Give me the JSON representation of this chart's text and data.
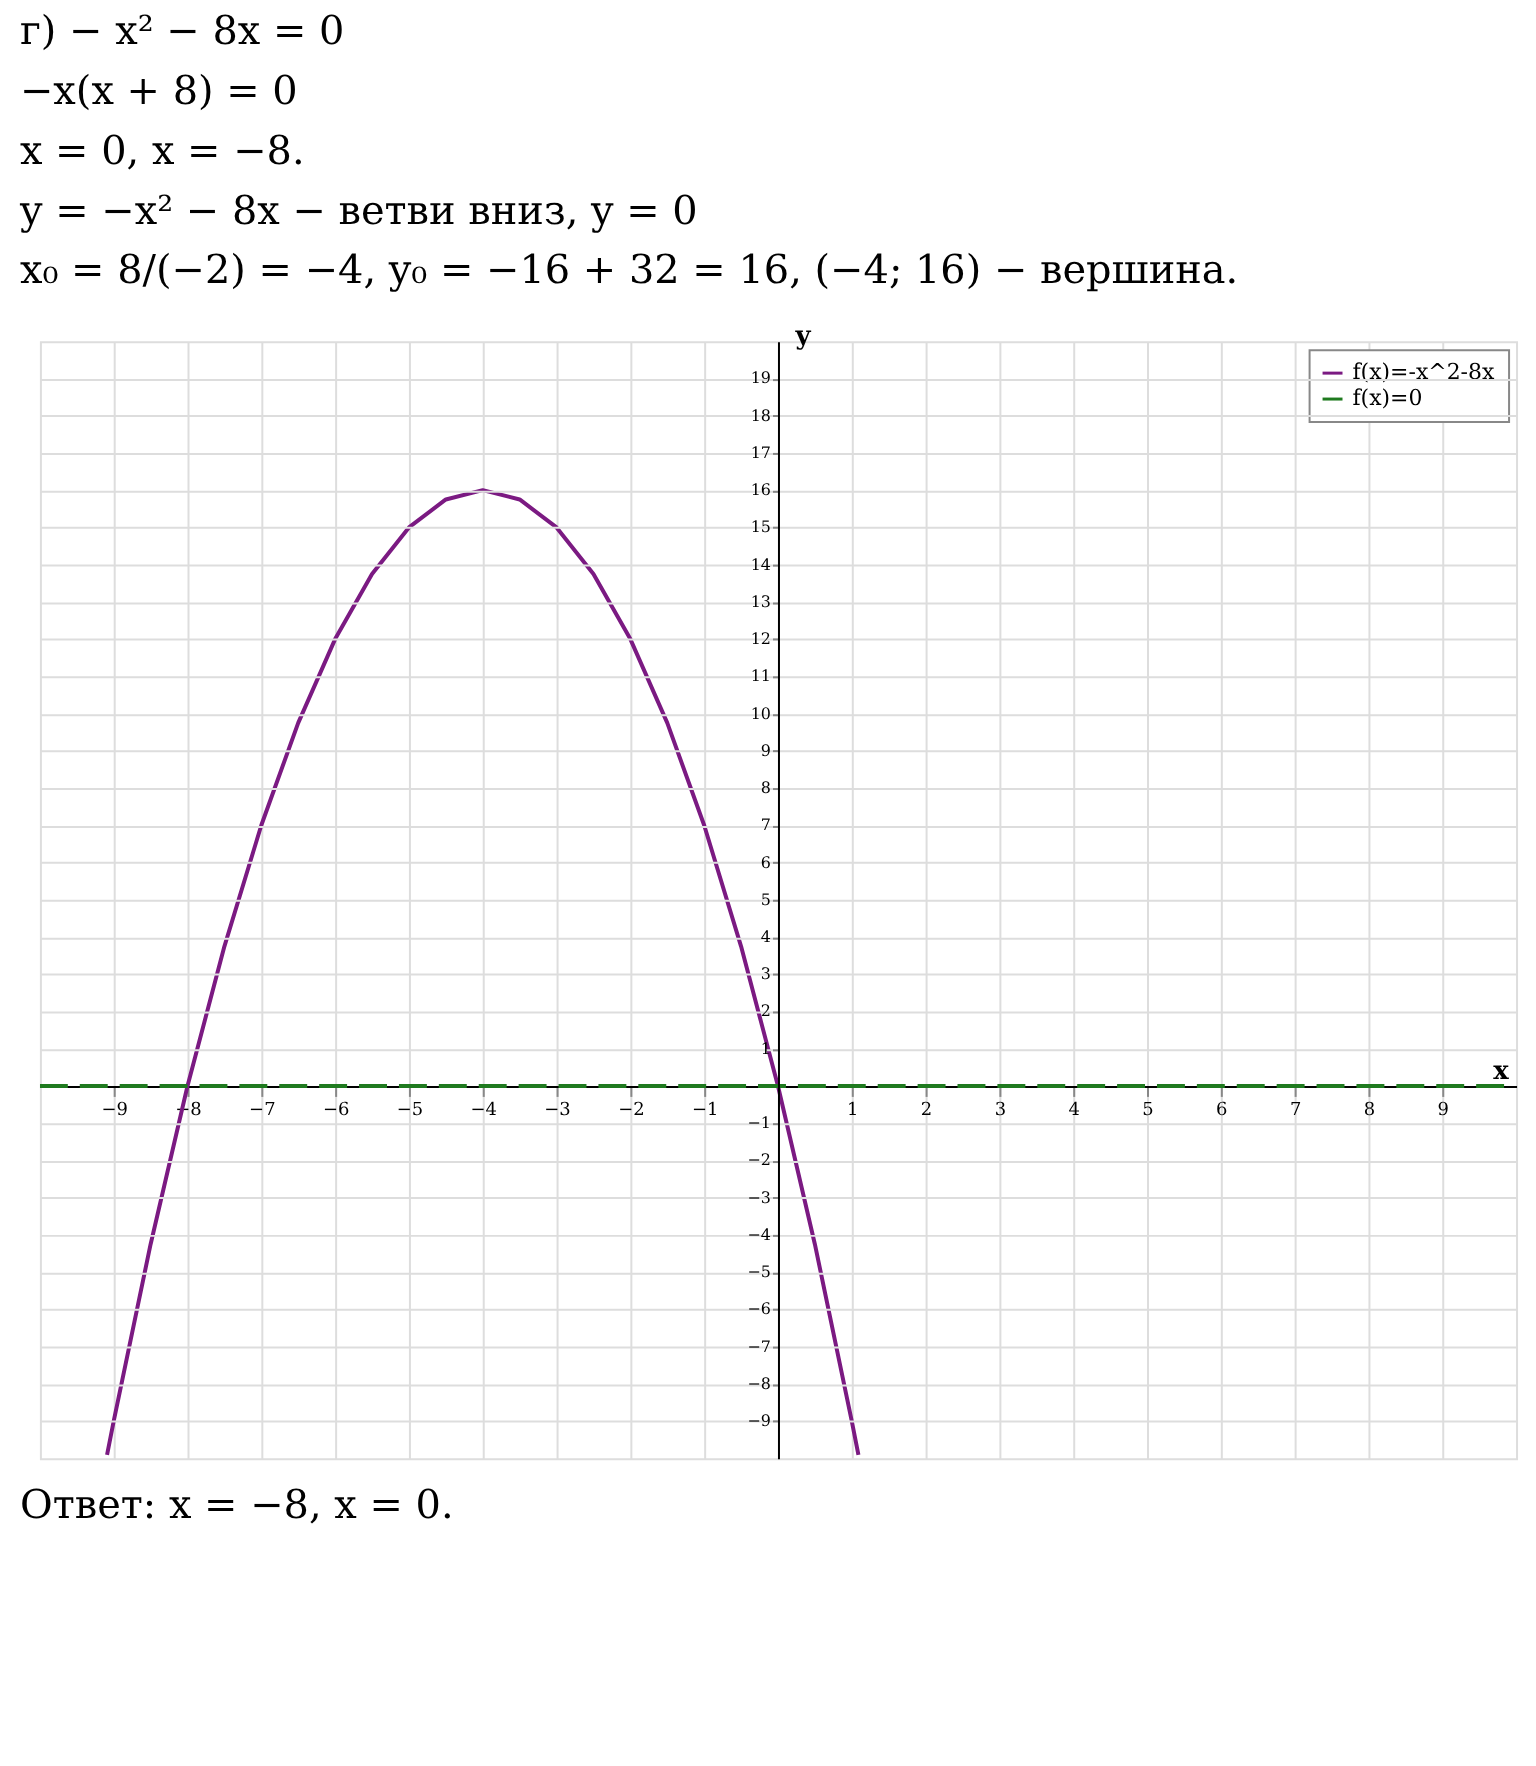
{
  "chart_data": {
    "type": "line",
    "annotations": [
      "г) − x² − 8x = 0",
      "−x(x + 8) = 0",
      "x = 0,      x = −8.",
      "y = −x² − 8x − ветви вниз,      y = 0",
      "x₀ = 8/(−2) = −4,      y₀ = −16 + 32 = 16,      (−4; 16) − вершина.",
      "Ответ: x = −8,      x = 0."
    ],
    "xlabel": "x",
    "ylabel": "y",
    "series": [
      {
        "name": "f(x)=-x^2-8x",
        "color": "#7b1a82",
        "line_style": "solid",
        "x": [
          -9.09,
          -9,
          -8.5,
          -8,
          -7.5,
          -7,
          -6.5,
          -6,
          -5.5,
          -5,
          -4.5,
          -4,
          -3.5,
          -3,
          -2.5,
          -2,
          -1.5,
          -1,
          -0.5,
          0,
          0.5,
          1,
          1.09
        ],
        "values": [
          -9.91,
          -9,
          -4.25,
          0,
          3.75,
          7,
          9.75,
          12,
          13.75,
          15,
          15.75,
          16,
          15.75,
          15,
          13.75,
          12,
          9.75,
          7,
          3.75,
          0,
          -4.25,
          -9,
          -9.91
        ]
      },
      {
        "name": "f(x)=0",
        "color": "#1f7a1f",
        "line_style": "dashed",
        "x": [
          -10,
          10
        ],
        "values": [
          0,
          0
        ]
      }
    ],
    "xlim": [
      -10,
      10
    ],
    "ylim": [
      -10,
      20
    ],
    "xticks": [
      -9,
      -8,
      -7,
      -6,
      -5,
      -4,
      -3,
      -2,
      -1,
      1,
      2,
      3,
      4,
      5,
      6,
      7,
      8,
      9
    ],
    "yticks": [
      -9,
      -8,
      -7,
      -6,
      -5,
      -4,
      -3,
      -2,
      -1,
      1,
      2,
      3,
      4,
      5,
      6,
      7,
      8,
      9,
      10,
      11,
      12,
      13,
      14,
      15,
      16,
      17,
      18,
      19
    ],
    "grid": true,
    "legend": "top right",
    "marker": "none"
  }
}
